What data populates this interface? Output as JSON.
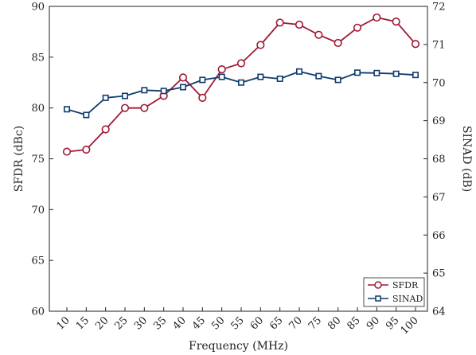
{
  "chart_data": {
    "type": "line",
    "xlabel": "Frequency (MHz)",
    "ylabel_left": "SFDR (dBc)",
    "ylabel_right": "SINAD (dB)",
    "x": [
      10,
      15,
      20,
      25,
      30,
      35,
      40,
      45,
      50,
      55,
      60,
      65,
      70,
      75,
      80,
      85,
      90,
      95,
      100
    ],
    "x_tick_labels": [
      "10",
      "15",
      "20",
      "25",
      "30",
      "35",
      "40",
      "45",
      "50",
      "55",
      "60",
      "65",
      "70",
      "75",
      "80",
      "85",
      "90",
      "95",
      "100"
    ],
    "ylim_left": [
      60,
      90
    ],
    "yticks_left": [
      "60",
      "65",
      "70",
      "75",
      "80",
      "85",
      "90"
    ],
    "ylim_right": [
      64,
      72
    ],
    "yticks_right": [
      "64",
      "65",
      "66",
      "67",
      "68",
      "69",
      "70",
      "71",
      "72"
    ],
    "grid": false,
    "legend_position": "bottom-right",
    "series": [
      {
        "name": "SFDR",
        "axis": "left",
        "marker": "circle",
        "color": "#a01a35",
        "values": [
          75.7,
          75.9,
          77.9,
          80.0,
          80.0,
          81.2,
          83.0,
          81.0,
          83.8,
          84.4,
          86.2,
          88.4,
          88.2,
          87.2,
          86.4,
          87.9,
          88.9,
          88.5,
          86.3
        ]
      },
      {
        "name": "SINAD",
        "axis": "right",
        "marker": "square",
        "color": "#0f3c6e",
        "values": [
          69.3,
          69.15,
          69.6,
          69.65,
          69.8,
          69.78,
          69.88,
          70.07,
          70.15,
          70.0,
          70.15,
          70.1,
          70.29,
          70.17,
          70.07,
          70.26,
          70.25,
          70.23,
          70.2
        ]
      }
    ]
  }
}
